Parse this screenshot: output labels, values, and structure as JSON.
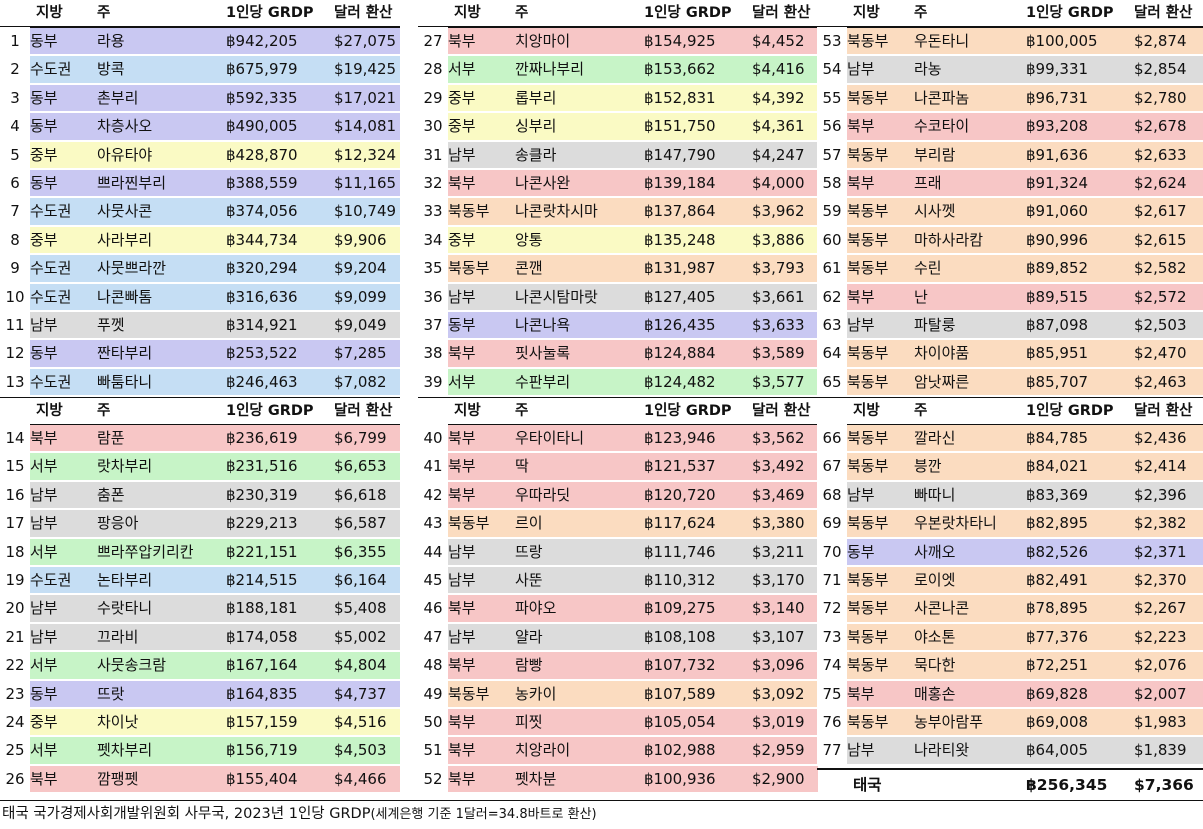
{
  "colors": {
    "동부": "#c9c8f2",
    "수도권": "#c5def4",
    "중부": "#fafac4",
    "남부": "#dcdcdc",
    "북부": "#f7c6c6",
    "서부": "#c7f4c7",
    "북동부": "#fbdcc0"
  },
  "headers": {
    "region": "지방",
    "province": "주",
    "grdp": "1인당 GRDP",
    "usd": "달러 환산"
  },
  "rows": [
    {
      "rank": "1",
      "region": "동부",
      "province": "라용",
      "grdp": "฿942,205",
      "usd": "$27,075"
    },
    {
      "rank": "2",
      "region": "수도권",
      "province": "방콕",
      "grdp": "฿675,979",
      "usd": "$19,425"
    },
    {
      "rank": "3",
      "region": "동부",
      "province": "촌부리",
      "grdp": "฿592,335",
      "usd": "$17,021"
    },
    {
      "rank": "4",
      "region": "동부",
      "province": "차층사오",
      "grdp": "฿490,005",
      "usd": "$14,081"
    },
    {
      "rank": "5",
      "region": "중부",
      "province": "아유타야",
      "grdp": "฿428,870",
      "usd": "$12,324"
    },
    {
      "rank": "6",
      "region": "동부",
      "province": "쁘라찐부리",
      "grdp": "฿388,559",
      "usd": "$11,165"
    },
    {
      "rank": "7",
      "region": "수도권",
      "province": "사뭇사콘",
      "grdp": "฿374,056",
      "usd": "$10,749"
    },
    {
      "rank": "8",
      "region": "중부",
      "province": "사라부리",
      "grdp": "฿344,734",
      "usd": "$9,906"
    },
    {
      "rank": "9",
      "region": "수도권",
      "province": "사뭇쁘라깐",
      "grdp": "฿320,294",
      "usd": "$9,204"
    },
    {
      "rank": "10",
      "region": "수도권",
      "province": "나콘빠톰",
      "grdp": "฿316,636",
      "usd": "$9,099"
    },
    {
      "rank": "11",
      "region": "남부",
      "province": "푸껫",
      "grdp": "฿314,921",
      "usd": "$9,049"
    },
    {
      "rank": "12",
      "region": "동부",
      "province": "짠타부리",
      "grdp": "฿253,522",
      "usd": "$7,285"
    },
    {
      "rank": "13",
      "region": "수도권",
      "province": "빠툼타니",
      "grdp": "฿246,463",
      "usd": "$7,082"
    },
    {
      "rank": "14",
      "region": "북부",
      "province": "람푼",
      "grdp": "฿236,619",
      "usd": "$6,799"
    },
    {
      "rank": "15",
      "region": "서부",
      "province": "랏차부리",
      "grdp": "฿231,516",
      "usd": "$6,653"
    },
    {
      "rank": "16",
      "region": "남부",
      "province": "춤폰",
      "grdp": "฿230,319",
      "usd": "$6,618"
    },
    {
      "rank": "17",
      "region": "남부",
      "province": "팡응아",
      "grdp": "฿229,213",
      "usd": "$6,587"
    },
    {
      "rank": "18",
      "region": "서부",
      "province": "쁘라쭈압키리칸",
      "grdp": "฿221,151",
      "usd": "$6,355"
    },
    {
      "rank": "19",
      "region": "수도권",
      "province": "논타부리",
      "grdp": "฿214,515",
      "usd": "$6,164"
    },
    {
      "rank": "20",
      "region": "남부",
      "province": "수랏타니",
      "grdp": "฿188,181",
      "usd": "$5,408"
    },
    {
      "rank": "21",
      "region": "남부",
      "province": "끄라비",
      "grdp": "฿174,058",
      "usd": "$5,002"
    },
    {
      "rank": "22",
      "region": "서부",
      "province": "사뭇송크람",
      "grdp": "฿167,164",
      "usd": "$4,804"
    },
    {
      "rank": "23",
      "region": "동부",
      "province": "뜨랏",
      "grdp": "฿164,835",
      "usd": "$4,737"
    },
    {
      "rank": "24",
      "region": "중부",
      "province": "차이낫",
      "grdp": "฿157,159",
      "usd": "$4,516"
    },
    {
      "rank": "25",
      "region": "서부",
      "province": "펫차부리",
      "grdp": "฿156,719",
      "usd": "$4,503"
    },
    {
      "rank": "26",
      "region": "북부",
      "province": "깜팽펫",
      "grdp": "฿155,404",
      "usd": "$4,466"
    },
    {
      "rank": "27",
      "region": "북부",
      "province": "치앙마이",
      "grdp": "฿154,925",
      "usd": "$4,452"
    },
    {
      "rank": "28",
      "region": "서부",
      "province": "깐짜나부리",
      "grdp": "฿153,662",
      "usd": "$4,416"
    },
    {
      "rank": "29",
      "region": "중부",
      "province": "롭부리",
      "grdp": "฿152,831",
      "usd": "$4,392"
    },
    {
      "rank": "30",
      "region": "중부",
      "province": "싱부리",
      "grdp": "฿151,750",
      "usd": "$4,361"
    },
    {
      "rank": "31",
      "region": "남부",
      "province": "송클라",
      "grdp": "฿147,790",
      "usd": "$4,247"
    },
    {
      "rank": "32",
      "region": "북부",
      "province": "나콘사완",
      "grdp": "฿139,184",
      "usd": "$4,000"
    },
    {
      "rank": "33",
      "region": "북동부",
      "province": "나콘랏차시마",
      "grdp": "฿137,864",
      "usd": "$3,962"
    },
    {
      "rank": "34",
      "region": "중부",
      "province": "앙통",
      "grdp": "฿135,248",
      "usd": "$3,886"
    },
    {
      "rank": "35",
      "region": "북동부",
      "province": "콘깬",
      "grdp": "฿131,987",
      "usd": "$3,793"
    },
    {
      "rank": "36",
      "region": "남부",
      "province": "나콘시탐마랏",
      "grdp": "฿127,405",
      "usd": "$3,661"
    },
    {
      "rank": "37",
      "region": "동부",
      "province": "나콘나욕",
      "grdp": "฿126,435",
      "usd": "$3,633"
    },
    {
      "rank": "38",
      "region": "북부",
      "province": "핏사눌록",
      "grdp": "฿124,884",
      "usd": "$3,589"
    },
    {
      "rank": "39",
      "region": "서부",
      "province": "수판부리",
      "grdp": "฿124,482",
      "usd": "$3,577"
    },
    {
      "rank": "40",
      "region": "북부",
      "province": "우타이타니",
      "grdp": "฿123,946",
      "usd": "$3,562"
    },
    {
      "rank": "41",
      "region": "북부",
      "province": "딱",
      "grdp": "฿121,537",
      "usd": "$3,492"
    },
    {
      "rank": "42",
      "region": "북부",
      "province": "우따라딧",
      "grdp": "฿120,720",
      "usd": "$3,469"
    },
    {
      "rank": "43",
      "region": "북동부",
      "province": "르이",
      "grdp": "฿117,624",
      "usd": "$3,380"
    },
    {
      "rank": "44",
      "region": "남부",
      "province": "뜨랑",
      "grdp": "฿111,746",
      "usd": "$3,211"
    },
    {
      "rank": "45",
      "region": "남부",
      "province": "사뚠",
      "grdp": "฿110,312",
      "usd": "$3,170"
    },
    {
      "rank": "46",
      "region": "북부",
      "province": "파야오",
      "grdp": "฿109,275",
      "usd": "$3,140"
    },
    {
      "rank": "47",
      "region": "남부",
      "province": "얄라",
      "grdp": "฿108,108",
      "usd": "$3,107"
    },
    {
      "rank": "48",
      "region": "북부",
      "province": "람빵",
      "grdp": "฿107,732",
      "usd": "$3,096"
    },
    {
      "rank": "49",
      "region": "북동부",
      "province": "농카이",
      "grdp": "฿107,589",
      "usd": "$3,092"
    },
    {
      "rank": "50",
      "region": "북부",
      "province": "피찟",
      "grdp": "฿105,054",
      "usd": "$3,019"
    },
    {
      "rank": "51",
      "region": "북부",
      "province": "치앙라이",
      "grdp": "฿102,988",
      "usd": "$2,959"
    },
    {
      "rank": "52",
      "region": "북부",
      "province": "펫차분",
      "grdp": "฿100,936",
      "usd": "$2,900"
    },
    {
      "rank": "53",
      "region": "북동부",
      "province": "우돈타니",
      "grdp": "฿100,005",
      "usd": "$2,874"
    },
    {
      "rank": "54",
      "region": "남부",
      "province": "라농",
      "grdp": "฿99,331",
      "usd": "$2,854"
    },
    {
      "rank": "55",
      "region": "북동부",
      "province": "나콘파놈",
      "grdp": "฿96,731",
      "usd": "$2,780"
    },
    {
      "rank": "56",
      "region": "북부",
      "province": "수코타이",
      "grdp": "฿93,208",
      "usd": "$2,678"
    },
    {
      "rank": "57",
      "region": "북동부",
      "province": "부리람",
      "grdp": "฿91,636",
      "usd": "$2,633"
    },
    {
      "rank": "58",
      "region": "북부",
      "province": "프래",
      "grdp": "฿91,324",
      "usd": "$2,624"
    },
    {
      "rank": "59",
      "region": "북동부",
      "province": "시사껫",
      "grdp": "฿91,060",
      "usd": "$2,617"
    },
    {
      "rank": "60",
      "region": "북동부",
      "province": "마하사라캄",
      "grdp": "฿90,996",
      "usd": "$2,615"
    },
    {
      "rank": "61",
      "region": "북동부",
      "province": "수린",
      "grdp": "฿89,852",
      "usd": "$2,582"
    },
    {
      "rank": "62",
      "region": "북부",
      "province": "난",
      "grdp": "฿89,515",
      "usd": "$2,572"
    },
    {
      "rank": "63",
      "region": "남부",
      "province": "파탈룽",
      "grdp": "฿87,098",
      "usd": "$2,503"
    },
    {
      "rank": "64",
      "region": "북동부",
      "province": "차이야품",
      "grdp": "฿85,951",
      "usd": "$2,470"
    },
    {
      "rank": "65",
      "region": "북동부",
      "province": "암낫짜른",
      "grdp": "฿85,707",
      "usd": "$2,463"
    },
    {
      "rank": "66",
      "region": "북동부",
      "province": "깔라신",
      "grdp": "฿84,785",
      "usd": "$2,436"
    },
    {
      "rank": "67",
      "region": "북동부",
      "province": "븡깐",
      "grdp": "฿84,021",
      "usd": "$2,414"
    },
    {
      "rank": "68",
      "region": "남부",
      "province": "빠따니",
      "grdp": "฿83,369",
      "usd": "$2,396"
    },
    {
      "rank": "69",
      "region": "북동부",
      "province": "우본랏차타니",
      "grdp": "฿82,895",
      "usd": "$2,382"
    },
    {
      "rank": "70",
      "region": "동부",
      "province": "사깨오",
      "grdp": "฿82,526",
      "usd": "$2,371"
    },
    {
      "rank": "71",
      "region": "북동부",
      "province": "로이엣",
      "grdp": "฿82,491",
      "usd": "$2,370"
    },
    {
      "rank": "72",
      "region": "북동부",
      "province": "사콘나콘",
      "grdp": "฿78,895",
      "usd": "$2,267"
    },
    {
      "rank": "73",
      "region": "북동부",
      "province": "야소톤",
      "grdp": "฿77,376",
      "usd": "$2,223"
    },
    {
      "rank": "74",
      "region": "북동부",
      "province": "묵다한",
      "grdp": "฿72,251",
      "usd": "$2,076"
    },
    {
      "rank": "75",
      "region": "북부",
      "province": "매홍손",
      "grdp": "฿69,828",
      "usd": "$2,007"
    },
    {
      "rank": "76",
      "region": "북동부",
      "province": "농부아람푸",
      "grdp": "฿69,008",
      "usd": "$1,983"
    },
    {
      "rank": "77",
      "region": "남부",
      "province": "나라티왓",
      "grdp": "฿64,005",
      "usd": "$1,839"
    }
  ],
  "total": {
    "label": "태국",
    "grdp": "฿256,345",
    "usd": "$7,366"
  },
  "source": {
    "main": "태국 국가경제사회개발위원회 사무국, 2023년 1인당 GRDP",
    "note": "(세계은행 기준 1달러=34.8바트로 환산)"
  }
}
